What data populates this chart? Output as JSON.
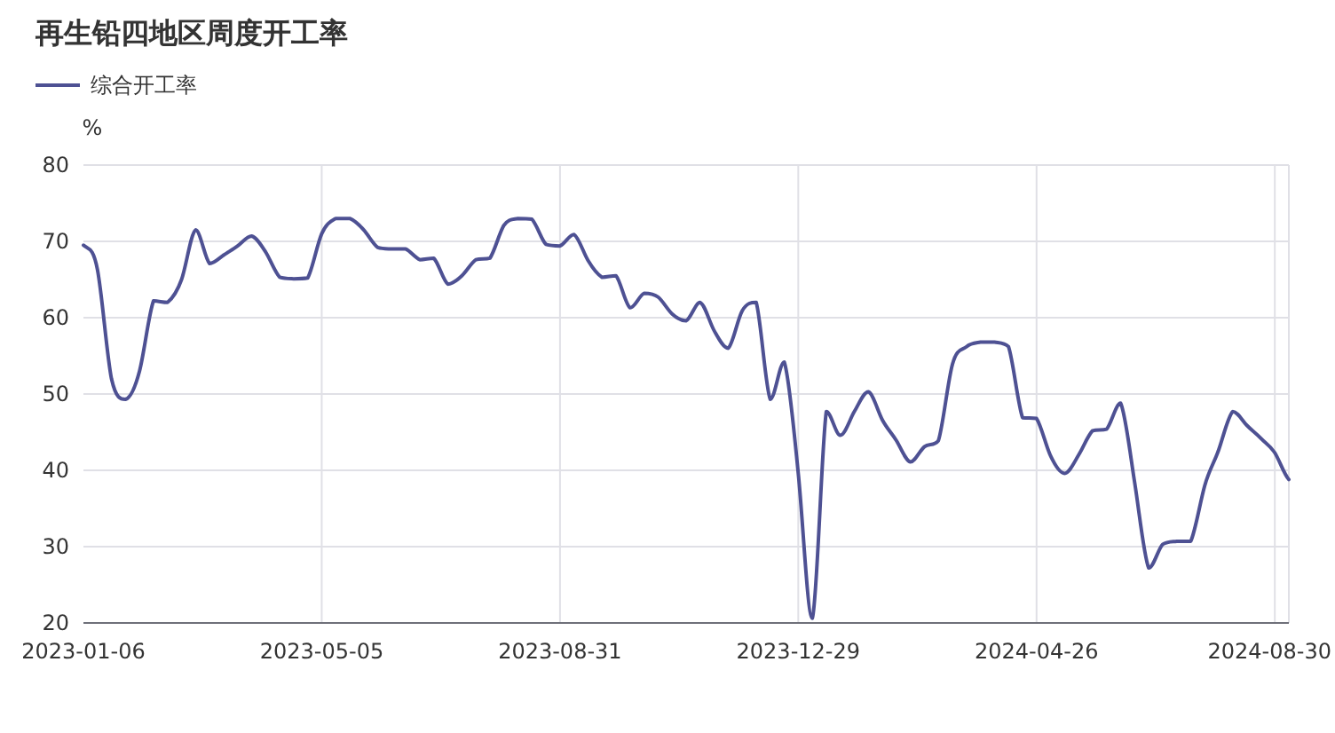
{
  "chart_data": {
    "type": "line",
    "title": "再生铅四地区周度开工率",
    "ylabel": "%",
    "legend": "top left",
    "grid": true,
    "ylim": [
      20,
      80
    ],
    "yticks": [
      20,
      30,
      40,
      50,
      60,
      70,
      80
    ],
    "categories": [
      "2023-01-06",
      null,
      null,
      null,
      null,
      null,
      null,
      null,
      null,
      null,
      null,
      null,
      null,
      null,
      null,
      null,
      null,
      "2023-05-05",
      null,
      null,
      null,
      null,
      null,
      null,
      null,
      null,
      null,
      null,
      null,
      null,
      null,
      null,
      null,
      null,
      "2023-08-31",
      null,
      null,
      null,
      null,
      null,
      null,
      null,
      null,
      null,
      null,
      null,
      null,
      null,
      null,
      null,
      null,
      "2023-12-29",
      null,
      null,
      null,
      null,
      null,
      null,
      null,
      null,
      null,
      null,
      null,
      null,
      null,
      null,
      null,
      null,
      "2024-04-26",
      null,
      null,
      null,
      null,
      null,
      null,
      null,
      null,
      null,
      null,
      null,
      null,
      null,
      null,
      null,
      null,
      "2024-08-30",
      null
    ],
    "series": [
      {
        "name": "综合开工率",
        "color": "#4e5193",
        "values": [
          69.5,
          66.3,
          52,
          49.3,
          53,
          62.2,
          62,
          65,
          71.5,
          67.1,
          68.2,
          69.4,
          70.7,
          68.6,
          65.3,
          65.1,
          65.2,
          71,
          73,
          73,
          71.5,
          69.2,
          69,
          69,
          67.6,
          67.8,
          64.4,
          65.5,
          67.6,
          67.8,
          72.1,
          73,
          72.9,
          69.6,
          69.4,
          70.9,
          67.5,
          65.3,
          65.5,
          61.3,
          63.2,
          62.7,
          60.5,
          59.6,
          62,
          58.3,
          56,
          60.9,
          62,
          49.3,
          54.2,
          39.6,
          20.6,
          47.7,
          44.6,
          47.7,
          50.3,
          46.6,
          43.9,
          41.1,
          43.1,
          43.9,
          53.9,
          56.2,
          56.8,
          56.8,
          56.2,
          46.9,
          46.8,
          41.9,
          39.6,
          42,
          45.2,
          45.4,
          48.8,
          38.4,
          27.2,
          30.3,
          30.7,
          30.7,
          38,
          42.7,
          47.7,
          45.9,
          44.2,
          42.3,
          38.8
        ]
      }
    ]
  }
}
